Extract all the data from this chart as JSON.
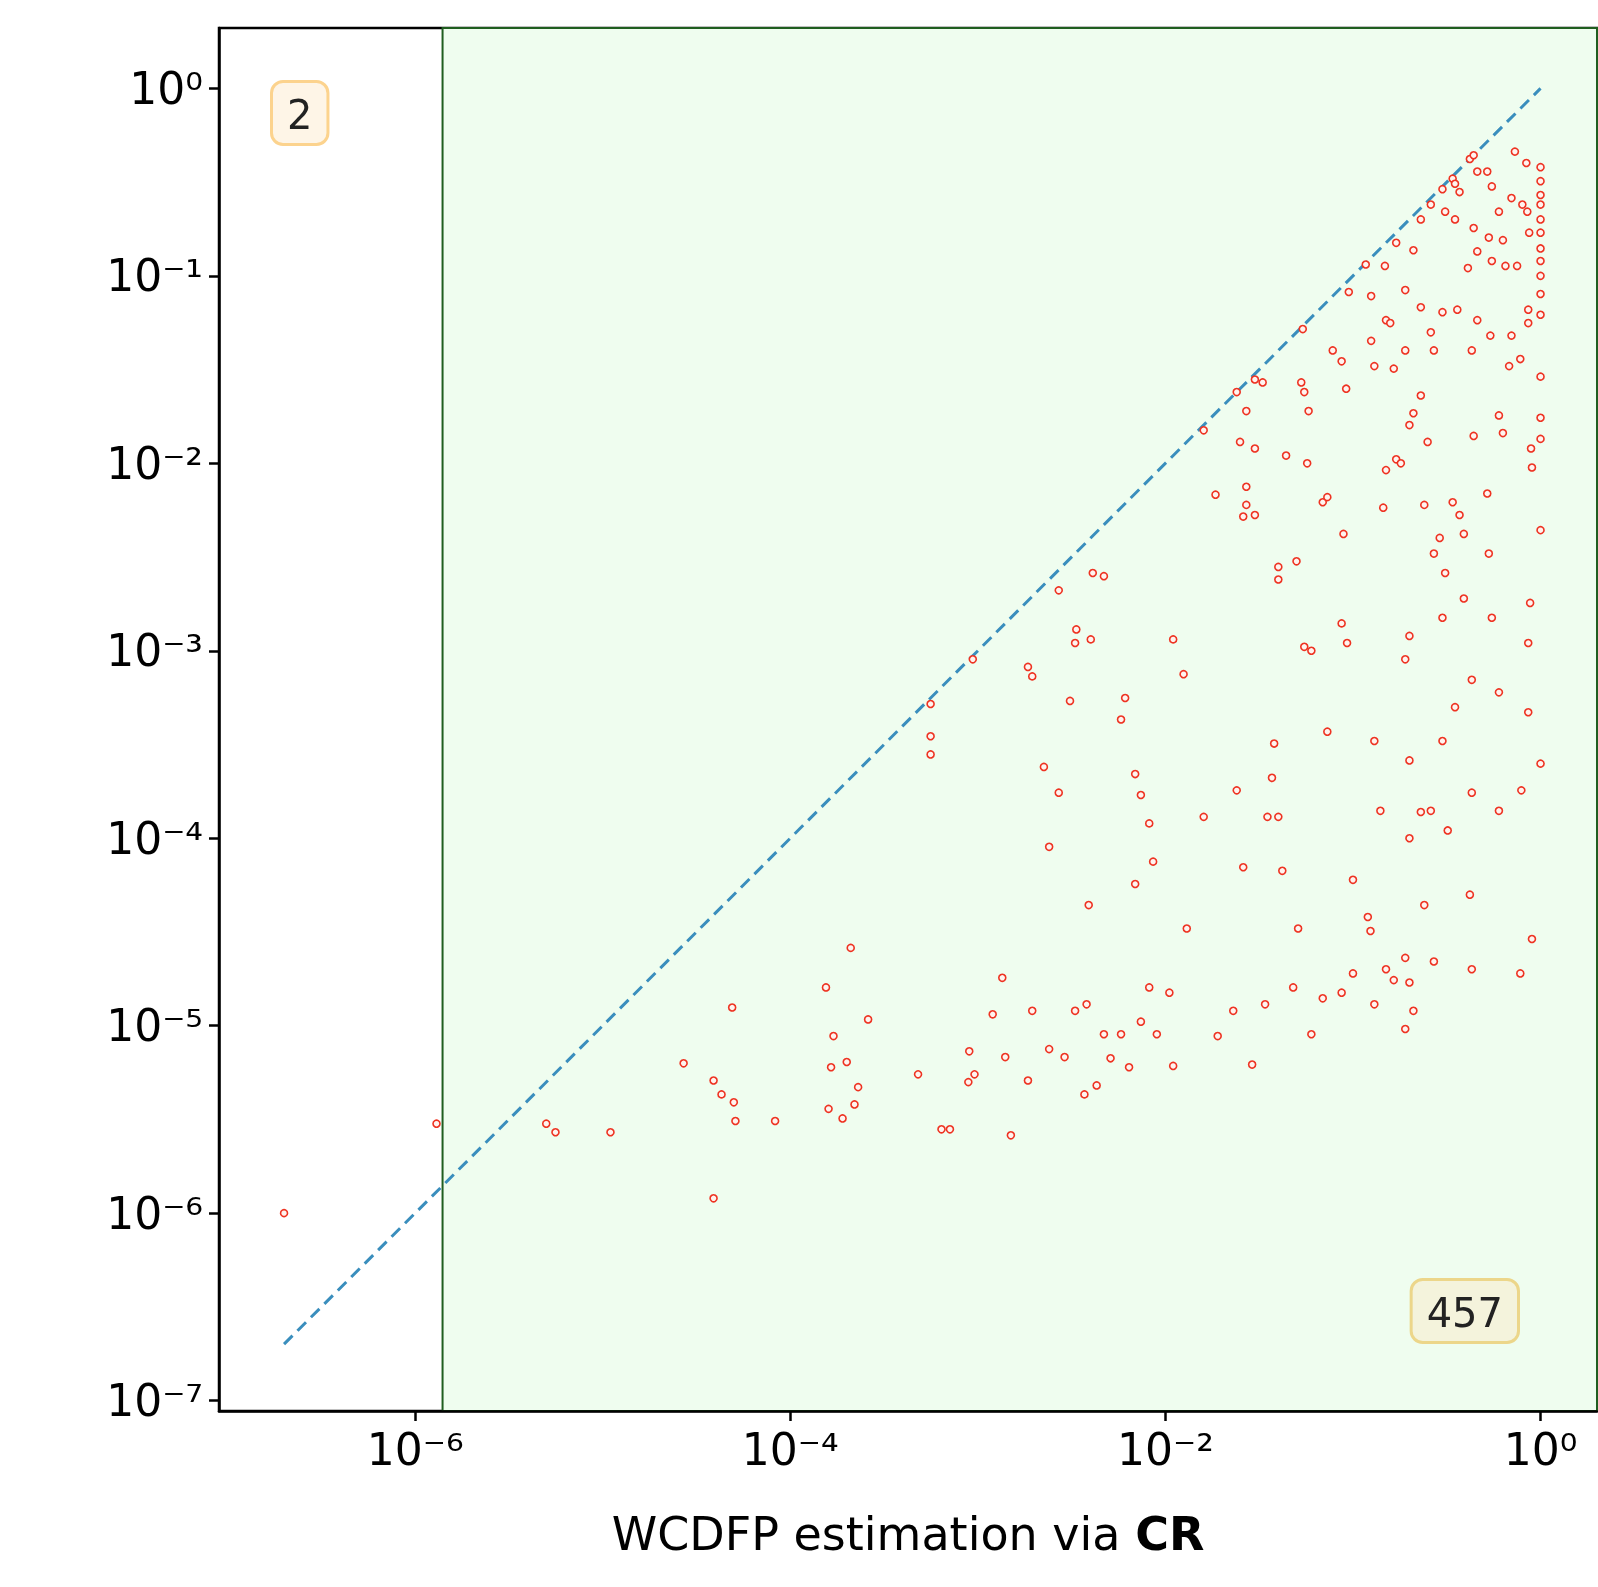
{
  "chart_data": {
    "type": "scatter",
    "xlabel": "WCDFP estimation via CR",
    "log": "xy",
    "grid": false,
    "xlim": [
      9e-08,
      2
    ],
    "ylim": [
      8.8e-08,
      2.1
    ],
    "xticks": [
      {
        "value": 1e-06,
        "label": "10⁻⁶"
      },
      {
        "value": 0.0001,
        "label": "10⁻⁴"
      },
      {
        "value": 0.01,
        "label": "10⁻²"
      },
      {
        "value": 1,
        "label": "10⁰"
      }
    ],
    "yticks": [
      {
        "value": 1e-07,
        "label": "10⁻⁷"
      },
      {
        "value": 1e-06,
        "label": "10⁻⁶"
      },
      {
        "value": 1e-05,
        "label": "10⁻⁵"
      },
      {
        "value": 0.0001,
        "label": "10⁻⁴"
      },
      {
        "value": 0.001,
        "label": "10⁻³"
      },
      {
        "value": 0.01,
        "label": "10⁻²"
      },
      {
        "value": 0.1,
        "label": "10⁻¹"
      },
      {
        "value": 1,
        "label": "10⁰"
      }
    ],
    "bands": [
      {
        "axis": "x",
        "from": 1.4e-06,
        "to": 2,
        "color": "#effdef"
      }
    ],
    "annotations": [
      "2",
      "457"
    ],
    "series": [
      {
        "type": "scatter",
        "color": "#ee3322",
        "marker": "circle",
        "x": [
          2e-07,
          1.3e-06,
          5e-06,
          5.6e-06,
          1.1e-05,
          2.7e-05,
          3.9e-05,
          4.3e-05,
          4.9e-05,
          5e-05,
          5.1e-05,
          3.9e-05,
          8.3e-05,
          0.000155,
          0.00017,
          0.000165,
          0.00016,
          0.00021,
          0.0002,
          0.00019,
          0.00022,
          0.00023,
          0.00026,
          0.00048,
          0.00056,
          0.00056,
          0.00056,
          0.00064,
          0.00071,
          0.00094,
          0.00089,
          0.00096,
          0.0009,
          0.0012,
          0.00135,
          0.0014,
          0.0015,
          0.00185,
          0.00195,
          0.00185,
          0.00195,
          0.00225,
          0.0024,
          0.0027,
          0.0027,
          0.0031,
          0.00335,
          0.0033,
          0.004,
          0.0041,
          0.0047,
          0.0039,
          0.0024,
          0.0029,
          0.0033,
          0.0038,
          0.0037,
          0.0043,
          0.0047,
          0.0051,
          0.0058,
          0.0064,
          0.0074,
          0.0082,
          0.009,
          0.011,
          0.0105,
          0.0061,
          0.0058,
          0.0069,
          0.0074,
          0.0082,
          0.0086,
          0.0069,
          0.011,
          0.0125,
          0.013,
          0.016,
          0.0185,
          0.016,
          0.024,
          0.027,
          0.025,
          0.027,
          0.027,
          0.026,
          0.024,
          0.026,
          0.03,
          0.033,
          0.03,
          0.03,
          0.038,
          0.037,
          0.035,
          0.04,
          0.042,
          0.04,
          0.04,
          0.05,
          0.044,
          0.054,
          0.053,
          0.055,
          0.058,
          0.057,
          0.055,
          0.06,
          0.051,
          0.069,
          0.073,
          0.078,
          0.073,
          0.087,
          0.092,
          0.095,
          0.089,
          0.087,
          0.093,
          0.1,
          0.117,
          0.125,
          0.125,
          0.13,
          0.12,
          0.124,
          0.13,
          0.14,
          0.148,
          0.15,
          0.158,
          0.145,
          0.165,
          0.17,
          0.18,
          0.15,
          0.17,
          0.19,
          0.19,
          0.2,
          0.19,
          0.2,
          0.21,
          0.21,
          0.2,
          0.2,
          0.2,
          0.19,
          0.23,
          0.23,
          0.23,
          0.25,
          0.24,
          0.23,
          0.24,
          0.21,
          0.26,
          0.26,
          0.27,
          0.26,
          0.27,
          0.27,
          0.29,
          0.3,
          0.31,
          0.3,
          0.3,
          0.31,
          0.32,
          0.3,
          0.34,
          0.35,
          0.37,
          0.35,
          0.36,
          0.34,
          0.37,
          0.39,
          0.39,
          0.35,
          0.42,
          0.44,
          0.46,
          0.44,
          0.43,
          0.44,
          0.43,
          0.43,
          0.42,
          0.43,
          0.41,
          0.46,
          0.46,
          0.52,
          0.55,
          0.53,
          0.55,
          0.54,
          0.53,
          0.55,
          0.52,
          0.6,
          0.63,
          0.65,
          0.6,
          0.63,
          0.6,
          0.6,
          0.7,
          0.73,
          0.7,
          0.68,
          0.75,
          0.8,
          0.78,
          0.84,
          0.85,
          0.87,
          0.86,
          0.86,
          0.9,
          0.89,
          0.79,
          0.78,
          0.86,
          0.86,
          0.88,
          0.9,
          1,
          1,
          1,
          1,
          1,
          1,
          1,
          1,
          1,
          1,
          1,
          1,
          1,
          1,
          1,
          1,
          0.1,
          0.15,
          0.19,
          0.069,
          0.048,
          0.034,
          0.023,
          0.019,
          0.029,
          0.06,
          0.087,
          0.13,
          0.165
        ],
        "values": [
          1e-06,
          3e-06,
          3e-06,
          2.7e-06,
          2.7e-06,
          6.3e-06,
          5.1e-06,
          4.3e-06,
          1.25e-05,
          3.9e-06,
          3.1e-06,
          1.2e-06,
          3.1e-06,
          1.6e-05,
          8.8e-06,
          6e-06,
          3.6e-06,
          2.6e-05,
          6.4e-06,
          3.2e-06,
          3.8e-06,
          4.7e-06,
          1.08e-05,
          5.5e-06,
          0.00052,
          0.00035,
          0.00028,
          2.8e-06,
          2.8e-06,
          0.0009,
          5e-06,
          5.5e-06,
          7.3e-06,
          1.15e-05,
          1.8e-05,
          6.8e-06,
          2.6e-06,
          0.00082,
          0.00073,
          5.1e-06,
          1.2e-05,
          0.00024,
          9e-05,
          0.0021,
          0.000175,
          0.00054,
          0.0013,
          0.0011,
          0.00115,
          0.0026,
          0.0025,
          4.4e-05,
          7.5e-06,
          6.8e-06,
          1.2e-05,
          1.3e-05,
          4.3e-06,
          4.8e-06,
          9e-06,
          6.7e-06,
          9e-06,
          6e-06,
          1.05e-05,
          1.6e-05,
          9e-06,
          6.1e-06,
          1.5e-05,
          0.00056,
          0.00043,
          0.00022,
          0.00017,
          0.00012,
          7.5e-05,
          5.7e-05,
          0.00115,
          0.00075,
          3.3e-05,
          0.015,
          0.0068,
          0.00013,
          0.024,
          0.019,
          0.013,
          0.0075,
          0.006,
          0.0052,
          0.00018,
          7e-05,
          0.028,
          0.027,
          0.012,
          0.0053,
          0.00032,
          0.00021,
          0.00013,
          0.00013,
          6.7e-05,
          0.0028,
          0.0024,
          0.003,
          0.011,
          0.052,
          0.027,
          0.024,
          0.019,
          0.01,
          0.00105,
          0.001,
          3.3e-05,
          0.0062,
          0.00037,
          0.04,
          0.0066,
          0.035,
          0.025,
          0.082,
          0.0042,
          0.0014,
          0.0011,
          6e-05,
          0.115,
          0.078,
          0.045,
          0.033,
          3.8e-05,
          3.2e-05,
          0.00033,
          0.00014,
          0.113,
          0.058,
          0.056,
          0.0058,
          0.032,
          0.0105,
          0.01,
          0.0092,
          0.15,
          0.084,
          0.04,
          0.0012,
          0.0009,
          0.00026,
          0.137,
          0.0185,
          0.016,
          0.0001,
          1.7e-05,
          9.6e-06,
          0.2,
          0.068,
          0.023,
          0.013,
          0.006,
          0.000138,
          4.4e-05,
          1.2e-05,
          0.24,
          0.05,
          0.04,
          0.00014,
          2.2e-05,
          0.0033,
          0.004,
          0.29,
          0.22,
          0.064,
          0.0015,
          0.0026,
          0.00011,
          0.00033,
          0.33,
          0.31,
          0.28,
          0.2,
          0.066,
          0.0062,
          0.0053,
          0.0042,
          0.0019,
          0.0005,
          0.42,
          0.44,
          0.36,
          0.18,
          0.04,
          0.014,
          0.0007,
          0.000175,
          5e-05,
          2e-05,
          0.11,
          0.135,
          0.058,
          0.36,
          0.3,
          0.16,
          0.12,
          0.048,
          0.0033,
          0.0015,
          0.0069,
          0.22,
          0.155,
          0.113,
          0.018,
          0.0145,
          0.0006,
          0.00014,
          0.26,
          0.46,
          0.048,
          0.033,
          0.113,
          0.24,
          0.036,
          0.4,
          0.22,
          0.17,
          0.066,
          0.056,
          0.0095,
          0.012,
          0.00018,
          1.9e-05,
          0.0011,
          0.00047,
          0.0018,
          2.9e-05,
          0.38,
          0.32,
          0.27,
          0.24,
          0.2,
          0.17,
          0.14,
          0.12,
          0.1,
          0.08,
          0.062,
          0.029,
          0.0175,
          0.0135,
          0.0044,
          0.00025,
          1.9e-05,
          2e-05,
          2.3e-05,
          1.4e-05,
          1.6e-05,
          1.3e-05,
          1.2e-05,
          8.8e-06,
          6.2e-06,
          9e-06,
          1.5e-05,
          1.3e-05,
          1.75e-05
        ]
      },
      {
        "type": "line",
        "color": "#3a8ebd",
        "marker": "none",
        "line_style": "dashed",
        "x": [
          2e-07,
          1
        ],
        "values": [
          2e-07,
          1
        ]
      }
    ]
  }
}
